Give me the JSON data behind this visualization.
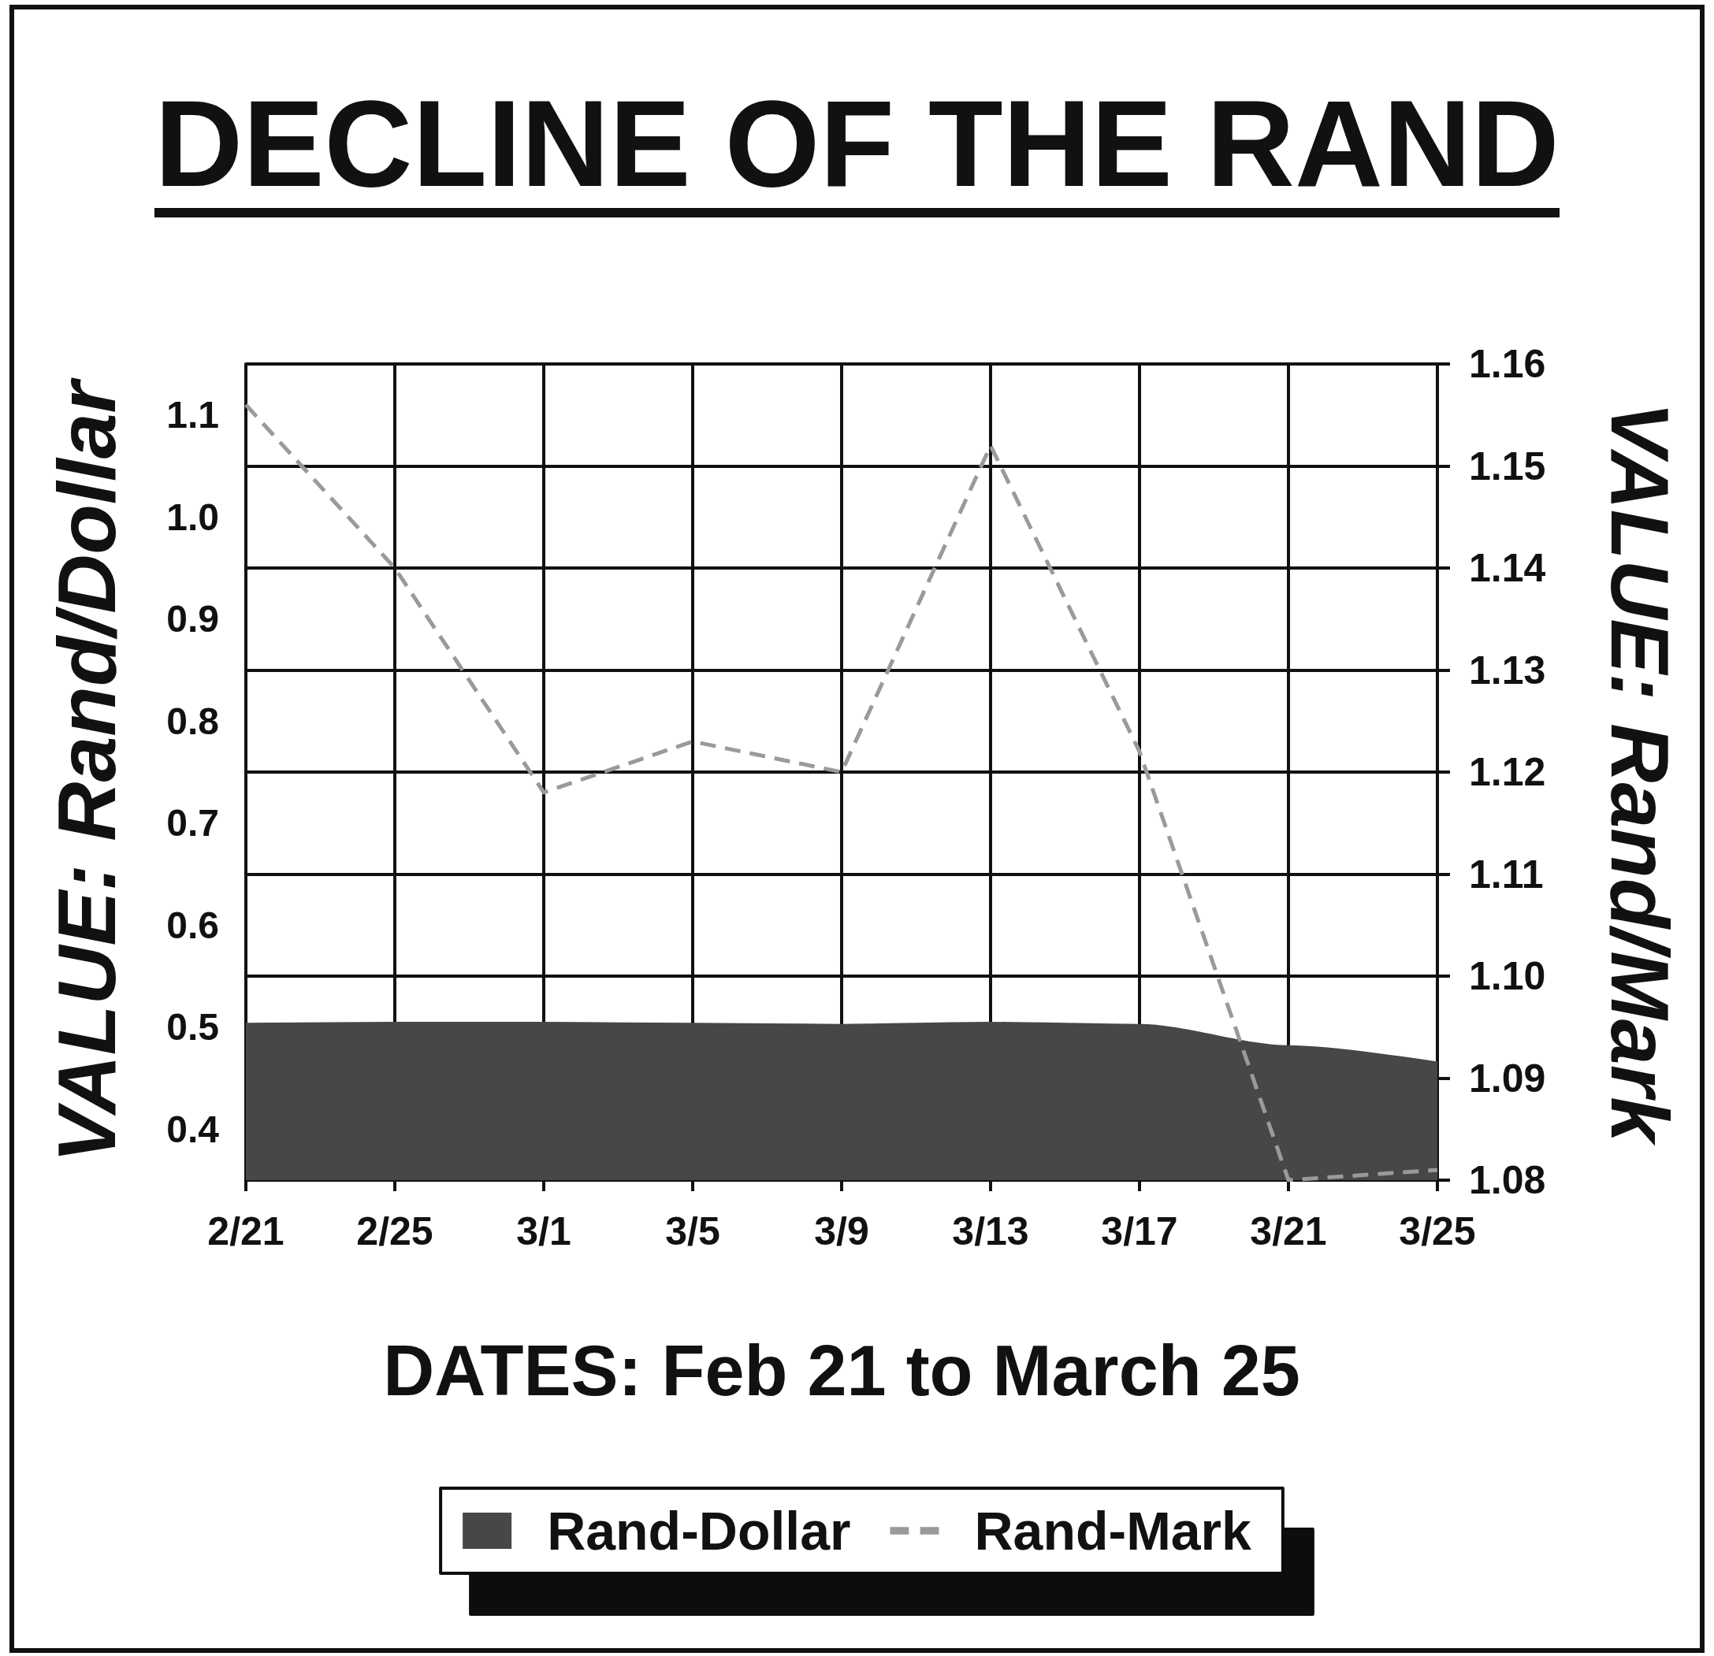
{
  "chart_data": {
    "type": "area",
    "title": "DECLINE OF THE RAND",
    "xlabel": "DATES: Feb 21 to March 25",
    "ylabel": "VALUE: Rand/Dollar",
    "y2label": "VALUE: Rand/Mark",
    "categories": [
      "2/21",
      "2/25",
      "3/1",
      "3/5",
      "3/9",
      "3/13",
      "3/17",
      "3/21",
      "3/25"
    ],
    "series": [
      {
        "name": "Rand-Dollar",
        "color": "#474747",
        "values": [
          0.503,
          0.504,
          0.504,
          0.503,
          0.502,
          0.504,
          0.502,
          0.481,
          0.465
        ]
      },
      {
        "name": "Rand-Mark",
        "type": "line",
        "axis": "y2",
        "color": "#9a9a9a",
        "line_style": "dashed",
        "values": [
          1.156,
          1.14,
          1.118,
          1.123,
          1.12,
          1.152,
          1.122,
          1.08,
          1.081
        ]
      }
    ],
    "ylim": [
      0.35,
      1.15
    ],
    "yticks": [
      0.4,
      0.5,
      0.6,
      0.7,
      0.8,
      0.9,
      {
        "value": 1,
        "label": "1.0"
      },
      1.1
    ],
    "y2lim": [
      1.08,
      1.16
    ],
    "y2ticks": [
      1.08,
      1.09,
      {
        "value": 1.1,
        "label": "1.10"
      },
      1.11,
      1.12,
      1.13,
      1.14,
      1.15,
      1.16
    ],
    "grid": true,
    "legend": "bottom"
  }
}
